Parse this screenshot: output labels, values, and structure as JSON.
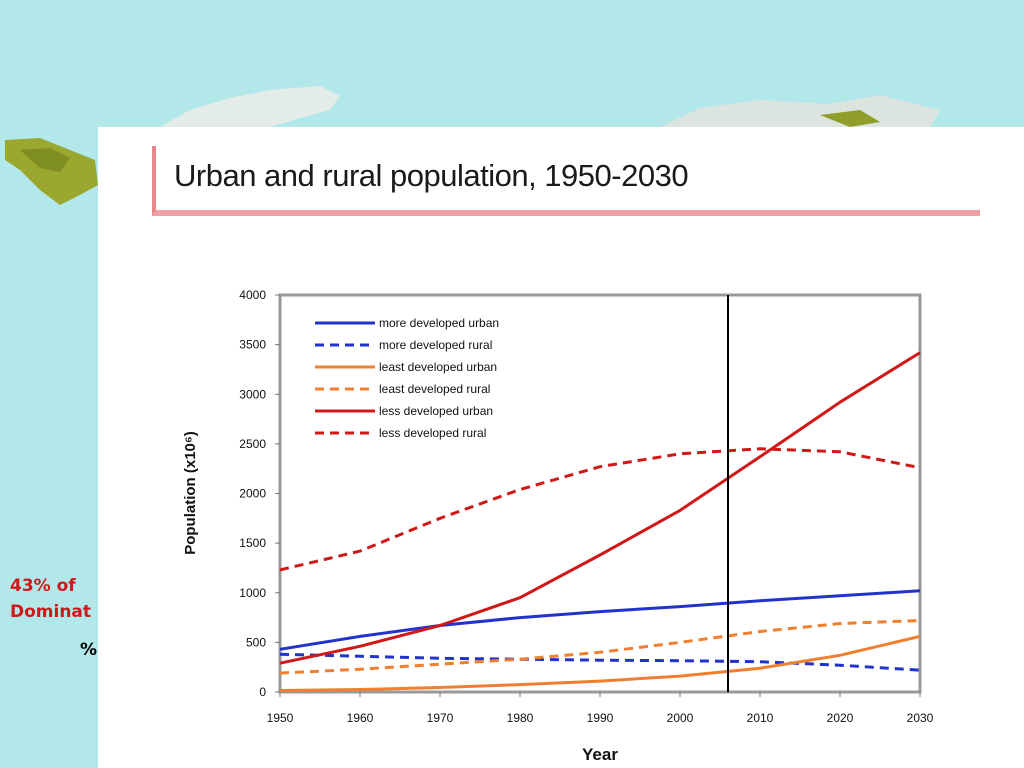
{
  "slide": {
    "side_line1": "43% of",
    "side_line2": "Dominat",
    "side_pct": "%"
  },
  "colors": {
    "background": "#b3e8ea",
    "title_accent": "#f0a0a4",
    "more_developed": "#2233cc",
    "least_developed": "#f08030",
    "less_developed": "#d01818"
  },
  "chart_data": {
    "type": "line",
    "title": "Urban and rural population, 1950-2030",
    "xlabel": "Year",
    "ylabel": "Population (x10⁶)",
    "xlim": [
      1950,
      2030
    ],
    "ylim": [
      0,
      4000
    ],
    "x_ticks": [
      1950,
      1960,
      1970,
      1980,
      1990,
      2000,
      2010,
      2020,
      2030
    ],
    "y_ticks": [
      0,
      500,
      1000,
      1500,
      2000,
      2500,
      3000,
      3500,
      4000
    ],
    "marker_year": 2006,
    "legend_position": "top-left",
    "grid": false,
    "x": [
      1950,
      1960,
      1970,
      1980,
      1990,
      2000,
      2010,
      2020,
      2030
    ],
    "series": [
      {
        "name": "more developed urban",
        "color": "#2233cc",
        "style": "solid",
        "values": [
          430,
          560,
          670,
          750,
          810,
          860,
          920,
          970,
          1020
        ]
      },
      {
        "name": "more developed rural",
        "color": "#2233cc",
        "style": "dashed",
        "values": [
          380,
          360,
          340,
          330,
          320,
          315,
          305,
          270,
          220
        ]
      },
      {
        "name": "least developed urban",
        "color": "#f08030",
        "style": "solid",
        "values": [
          15,
          25,
          45,
          75,
          110,
          160,
          240,
          370,
          560
        ]
      },
      {
        "name": "least developed rural",
        "color": "#f08030",
        "style": "dashed",
        "values": [
          190,
          230,
          280,
          330,
          400,
          500,
          610,
          690,
          720
        ]
      },
      {
        "name": "less developed urban",
        "color": "#d01818",
        "style": "solid",
        "values": [
          290,
          460,
          670,
          950,
          1380,
          1830,
          2370,
          2920,
          3420
        ]
      },
      {
        "name": "less developed rural",
        "color": "#d01818",
        "style": "dashed",
        "values": [
          1230,
          1420,
          1750,
          2040,
          2270,
          2400,
          2450,
          2420,
          2260
        ]
      }
    ]
  }
}
